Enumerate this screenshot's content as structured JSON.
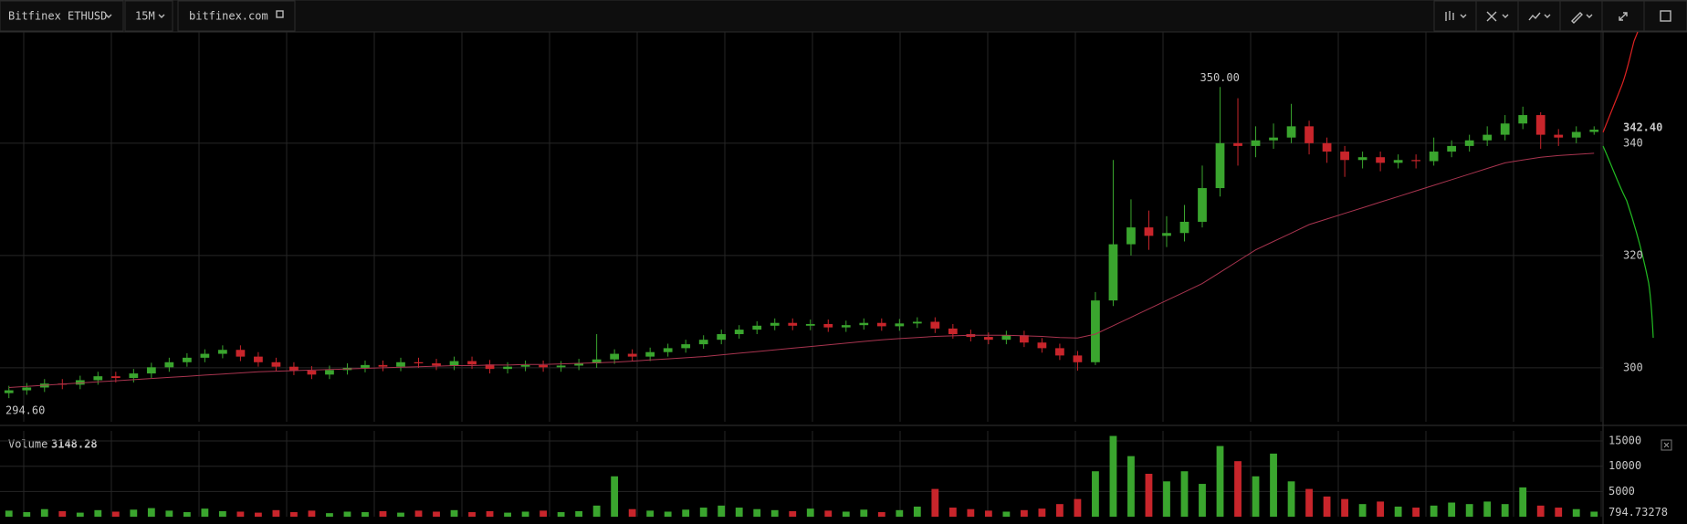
{
  "toolbar": {
    "symbol": "Bitfinex ETHUSD",
    "interval": "15M",
    "source": "bitfinex.com"
  },
  "chart_data": {
    "type": "candlestick",
    "open": [
      295.5,
      296.0,
      296.5,
      297.2,
      297.0,
      297.8,
      298.5,
      298.2,
      299.0,
      300.1,
      301.0,
      301.8,
      302.5,
      303.2,
      302.0,
      301.0,
      300.2,
      299.5,
      298.8,
      299.6,
      300.0,
      300.5,
      300.2,
      301.0,
      300.8,
      300.4,
      301.2,
      300.6,
      299.8,
      300.2,
      300.5,
      300.1,
      300.4,
      300.8,
      301.5,
      302.5,
      302.0,
      302.8,
      303.5,
      304.2,
      305.0,
      306.0,
      306.8,
      307.5,
      308.0,
      307.5,
      307.8,
      307.2,
      307.6,
      308.0,
      307.4,
      307.9,
      308.2,
      307.0,
      306.0,
      305.5,
      305.0,
      305.8,
      304.5,
      303.5,
      302.2,
      301.0,
      312.0,
      322.0,
      325.0,
      323.5,
      324.0,
      326.0,
      332.0,
      340.0,
      339.5,
      340.5,
      341.0,
      343.0,
      340.0,
      338.5,
      337.0,
      337.5,
      336.5,
      337.0,
      336.8,
      338.5,
      339.5,
      340.5,
      341.5,
      343.5,
      345.0,
      341.5,
      341.0,
      342.0
    ],
    "high": [
      296.8,
      297.3,
      298.0,
      298.0,
      298.6,
      299.3,
      299.3,
      299.8,
      300.9,
      301.8,
      302.6,
      303.3,
      304.0,
      304.0,
      302.8,
      301.8,
      301.0,
      300.3,
      300.4,
      300.8,
      301.3,
      301.3,
      301.8,
      301.8,
      301.6,
      302.0,
      302.0,
      301.4,
      301.0,
      301.3,
      301.3,
      301.2,
      301.6,
      306.0,
      303.3,
      303.3,
      303.6,
      304.3,
      305.0,
      305.8,
      306.8,
      307.6,
      308.3,
      308.8,
      308.8,
      308.6,
      308.6,
      308.4,
      308.8,
      308.8,
      308.7,
      309.0,
      309.0,
      307.8,
      306.8,
      306.3,
      306.6,
      306.6,
      305.3,
      304.3,
      303.0,
      313.5,
      337.0,
      330.0,
      328.0,
      327.0,
      329.0,
      336.0,
      350.0,
      348.0,
      343.0,
      343.5,
      347.0,
      344.0,
      341.0,
      339.5,
      338.5,
      338.5,
      338.0,
      338.0,
      341.0,
      340.5,
      341.5,
      343.0,
      345.0,
      346.5,
      345.5,
      342.5,
      343.0,
      343.0
    ],
    "low": [
      294.6,
      295.2,
      295.7,
      296.2,
      296.2,
      297.0,
      297.4,
      297.4,
      298.2,
      299.3,
      300.2,
      301.0,
      301.7,
      301.2,
      300.2,
      299.4,
      298.7,
      298.0,
      298.0,
      298.8,
      299.2,
      299.4,
      299.4,
      300.0,
      299.6,
      299.6,
      299.8,
      299.0,
      299.0,
      299.4,
      299.3,
      299.3,
      299.6,
      300.0,
      300.7,
      301.2,
      301.2,
      302.0,
      302.7,
      303.4,
      304.2,
      305.2,
      306.0,
      306.7,
      306.7,
      306.7,
      306.4,
      306.4,
      306.8,
      306.6,
      306.6,
      307.1,
      306.2,
      305.2,
      304.7,
      304.2,
      304.2,
      303.7,
      302.7,
      301.4,
      299.5,
      300.5,
      311.0,
      320.0,
      321.0,
      321.5,
      322.5,
      325.0,
      330.5,
      336.0,
      337.5,
      339.0,
      340.0,
      338.0,
      336.5,
      334.0,
      335.5,
      335.0,
      335.5,
      335.5,
      336.0,
      337.5,
      338.5,
      339.5,
      340.5,
      342.5,
      339.0,
      339.5,
      340.0,
      341.5
    ],
    "close": [
      296.0,
      296.5,
      297.2,
      297.0,
      297.8,
      298.5,
      298.2,
      299.0,
      300.1,
      301.0,
      301.8,
      302.5,
      303.2,
      302.0,
      301.0,
      300.2,
      299.5,
      298.8,
      299.6,
      300.0,
      300.5,
      300.2,
      301.0,
      300.8,
      300.4,
      301.2,
      300.6,
      299.8,
      300.2,
      300.5,
      300.1,
      300.4,
      300.8,
      301.5,
      302.5,
      302.0,
      302.8,
      303.5,
      304.2,
      305.0,
      306.0,
      306.8,
      307.5,
      308.0,
      307.5,
      307.8,
      307.2,
      307.6,
      308.0,
      307.4,
      307.9,
      308.2,
      307.0,
      306.0,
      305.5,
      305.0,
      305.8,
      304.5,
      303.5,
      302.2,
      301.0,
      312.0,
      322.0,
      325.0,
      323.5,
      324.0,
      326.0,
      332.0,
      340.0,
      339.5,
      340.5,
      341.0,
      343.0,
      340.0,
      338.5,
      337.0,
      337.5,
      336.5,
      337.0,
      336.8,
      338.5,
      339.5,
      340.5,
      341.5,
      343.5,
      345.0,
      341.5,
      341.0,
      342.0,
      342.4
    ],
    "up_color": "#3aa52e",
    "down_color": "#c8252b",
    "ylim": [
      290.4,
      359.8
    ],
    "yticks": [
      300,
      320,
      340
    ],
    "grid": true,
    "last_price": {
      "value": 342.4,
      "label": "342.40"
    },
    "annotations": [
      {
        "value": 350,
        "label": "350.00"
      },
      {
        "value": 294.6,
        "label": "294.60"
      }
    ],
    "overlays": [
      {
        "color": "#a8344f",
        "values": [
          296.5,
          296.7,
          296.9,
          297.1,
          297.3,
          297.5,
          297.7,
          297.9,
          298.1,
          298.3,
          298.5,
          298.7,
          298.9,
          299.1,
          299.3,
          299.4,
          299.5,
          299.6,
          299.7,
          299.8,
          299.9,
          300.0,
          300.1,
          300.2,
          300.3,
          300.4,
          300.4,
          300.5,
          300.5,
          300.6,
          300.6,
          300.7,
          300.8,
          300.9,
          301.0,
          301.2,
          301.4,
          301.6,
          301.8,
          302.0,
          302.3,
          302.6,
          302.9,
          303.2,
          303.5,
          303.8,
          304.1,
          304.4,
          304.7,
          305.0,
          305.2,
          305.4,
          305.6,
          305.7,
          305.8,
          305.8,
          305.8,
          305.7,
          305.6,
          305.4,
          305.3,
          306.0,
          307.5,
          309.0,
          310.5,
          312.0,
          313.5,
          315.0,
          317.0,
          319.0,
          321.0,
          322.5,
          324.0,
          325.5,
          326.5,
          327.5,
          328.5,
          329.5,
          330.5,
          331.5,
          332.5,
          333.5,
          334.5,
          335.5,
          336.5,
          337.0,
          337.5,
          337.8,
          338.0,
          338.2
        ]
      }
    ],
    "volume": {
      "label": "Volume",
      "current": 3148.28,
      "values": [
        1200,
        900,
        1500,
        1100,
        800,
        1300,
        1000,
        1400,
        1700,
        1200,
        900,
        1600,
        1100,
        1000,
        800,
        1300,
        900,
        1200,
        700,
        1000,
        900,
        1100,
        800,
        1200,
        1000,
        1300,
        900,
        1100,
        800,
        1000,
        1200,
        900,
        1100,
        2200,
        8000,
        1500,
        1200,
        1000,
        1400,
        1800,
        2200,
        1800,
        1500,
        1300,
        1100,
        1600,
        1200,
        1000,
        1400,
        900,
        1300,
        2000,
        5500,
        1800,
        1500,
        1200,
        1000,
        1300,
        1600,
        2500,
        3500,
        9000,
        16000,
        12000,
        8500,
        7000,
        9000,
        6500,
        14000,
        11000,
        8000,
        12500,
        7000,
        5500,
        4000,
        3500,
        2500,
        3000,
        2000,
        1800,
        2200,
        2800,
        2500,
        3000,
        2500,
        5800,
        2200,
        1800,
        1500,
        1000
      ],
      "ylim": [
        0,
        17000
      ],
      "yticks": [
        5000,
        10000,
        15000
      ],
      "last": 794.73278
    }
  }
}
